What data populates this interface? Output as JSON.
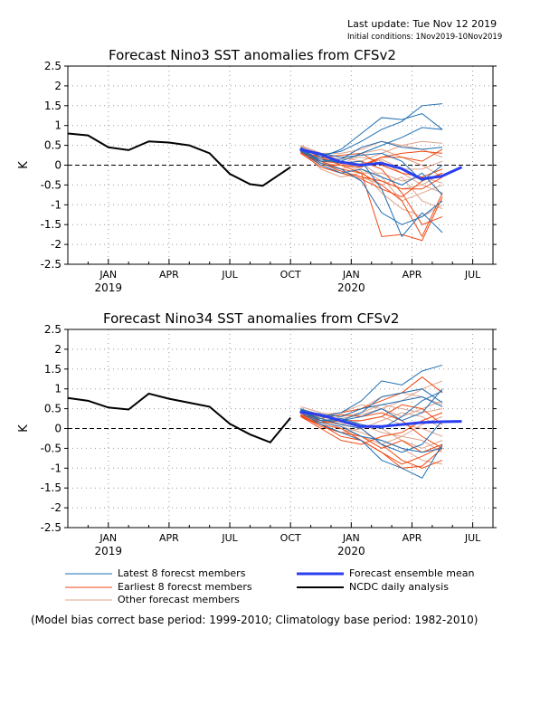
{
  "header": {
    "last_update": "Last update: Tue Nov 12 2019",
    "initial_conditions": "Initial conditions: 1Nov2019-10Nov2019"
  },
  "legend": {
    "latest": "Latest 8 forecst members",
    "earliest": "Earliest 8 forecst members",
    "other": "Other forecast members",
    "mean": "Forecast ensemble mean",
    "ncdc": "NCDC daily analysis"
  },
  "footnote": "(Model bias correct base period: 1999-2010; Climatology base period: 1982-2010)",
  "colors": {
    "latest": "#1f6fb4",
    "earliest": "#f04a14",
    "other": "#dfa58d",
    "mean": "#2b3ff0",
    "ncdc": "#000000"
  },
  "chart_data": [
    {
      "type": "line",
      "title": "Forecast Nino3 SST anomalies from CFSv2",
      "ylabel": "K",
      "ylim": [
        -2.5,
        2.5
      ],
      "yticks": [
        "2.5",
        "2",
        "1.5",
        "1",
        "0.5",
        "0",
        "-0.5",
        "-1",
        "-1.5",
        "-2",
        "-2.5"
      ],
      "xrange_months": [
        "Nov 2018",
        "Aug 2020"
      ],
      "xticks": [
        {
          "label": "JAN",
          "sub": "2019"
        },
        {
          "label": "APR",
          "sub": ""
        },
        {
          "label": "JUL",
          "sub": ""
        },
        {
          "label": "OCT",
          "sub": ""
        },
        {
          "label": "JAN",
          "sub": "2020"
        },
        {
          "label": "APR",
          "sub": ""
        },
        {
          "label": "JUL",
          "sub": ""
        }
      ],
      "grid": true,
      "ncdc": [
        [
          "2018-11-01",
          0.8
        ],
        [
          "2018-12-01",
          0.75
        ],
        [
          "2019-01-01",
          0.45
        ],
        [
          "2019-02-01",
          0.38
        ],
        [
          "2019-03-01",
          0.6
        ],
        [
          "2019-04-01",
          0.57
        ],
        [
          "2019-05-01",
          0.5
        ],
        [
          "2019-06-01",
          0.3
        ],
        [
          "2019-07-01",
          -0.22
        ],
        [
          "2019-08-01",
          -0.48
        ],
        [
          "2019-08-20",
          -0.52
        ],
        [
          "2019-10-01",
          -0.05
        ]
      ],
      "mean": [
        [
          "2019-10-15",
          0.4
        ],
        [
          "2019-11-15",
          0.28
        ],
        [
          "2019-12-15",
          0.08
        ],
        [
          "2020-01-15",
          0.0
        ],
        [
          "2020-02-15",
          0.05
        ],
        [
          "2020-03-15",
          -0.08
        ],
        [
          "2020-04-15",
          -0.35
        ],
        [
          "2020-05-15",
          -0.28
        ],
        [
          "2020-06-15",
          -0.05
        ]
      ],
      "members": [
        {
          "group": "latest",
          "values": [
            0.45,
            0.2,
            0.4,
            0.8,
            1.2,
            1.15,
            1.3,
            0.9
          ]
        },
        {
          "group": "latest",
          "values": [
            0.42,
            0.25,
            0.35,
            0.6,
            0.9,
            1.1,
            1.5,
            1.55
          ]
        },
        {
          "group": "latest",
          "values": [
            0.38,
            0.1,
            0.15,
            0.45,
            0.6,
            0.45,
            0.4,
            0.45
          ]
        },
        {
          "group": "latest",
          "values": [
            0.4,
            0.05,
            -0.1,
            -0.4,
            -1.2,
            -1.5,
            -1.3,
            -0.9
          ]
        },
        {
          "group": "latest",
          "values": [
            0.35,
            0.15,
            0.05,
            0.1,
            -0.6,
            -1.8,
            -1.2,
            -1.7
          ]
        },
        {
          "group": "latest",
          "values": [
            0.4,
            0.3,
            0.2,
            0.25,
            0.3,
            0.1,
            -0.4,
            0.0
          ]
        },
        {
          "group": "latest",
          "values": [
            0.43,
            0.1,
            0.1,
            0.3,
            0.5,
            0.7,
            0.95,
            0.9
          ]
        },
        {
          "group": "latest",
          "values": [
            0.36,
            0.0,
            -0.2,
            -0.1,
            -0.3,
            -0.5,
            -0.2,
            -0.75
          ]
        },
        {
          "group": "earliest",
          "values": [
            0.3,
            0.1,
            -0.1,
            -0.2,
            -1.8,
            -1.75,
            -1.9,
            -0.8
          ]
        },
        {
          "group": "earliest",
          "values": [
            0.35,
            0.2,
            0.0,
            -0.2,
            -0.5,
            -0.9,
            -1.8,
            -0.7
          ]
        },
        {
          "group": "earliest",
          "values": [
            0.38,
            0.15,
            0.1,
            0.0,
            0.2,
            0.2,
            0.1,
            0.4
          ]
        },
        {
          "group": "earliest",
          "values": [
            0.32,
            0.05,
            -0.15,
            -0.3,
            -0.4,
            -0.6,
            -0.6,
            -0.3
          ]
        },
        {
          "group": "earliest",
          "values": [
            0.35,
            0.1,
            0.05,
            0.1,
            -0.1,
            -0.7,
            -1.5,
            -1.3
          ]
        },
        {
          "group": "earliest",
          "values": [
            0.33,
            0.0,
            0.0,
            -0.05,
            0.2,
            0.3,
            0.35,
            0.3
          ]
        },
        {
          "group": "earliest",
          "values": [
            0.3,
            -0.05,
            -0.2,
            -0.35,
            -0.6,
            -0.8,
            -0.4,
            -0.2
          ]
        },
        {
          "group": "earliest",
          "values": [
            0.34,
            0.2,
            0.25,
            0.3,
            0.0,
            -0.2,
            -0.3,
            -0.1
          ]
        },
        {
          "group": "other",
          "values": [
            0.5,
            0.3,
            0.3,
            0.4,
            0.6,
            0.5,
            0.4,
            0.2
          ]
        },
        {
          "group": "other",
          "values": [
            0.45,
            0.2,
            0.1,
            -0.1,
            -0.4,
            -0.6,
            -0.5,
            -0.7
          ]
        },
        {
          "group": "other",
          "values": [
            0.48,
            0.25,
            0.15,
            0.2,
            0.1,
            -0.2,
            -0.5,
            -0.2
          ]
        },
        {
          "group": "other",
          "values": [
            0.4,
            0.1,
            -0.2,
            -0.3,
            -0.5,
            -0.3,
            -0.9,
            -1.1
          ]
        },
        {
          "group": "other",
          "values": [
            0.42,
            0.05,
            0.0,
            0.3,
            0.4,
            0.2,
            0.0,
            -0.3
          ]
        },
        {
          "group": "other",
          "values": [
            0.38,
            -0.1,
            -0.3,
            -0.2,
            -0.2,
            -0.4,
            -0.3,
            -0.45
          ]
        },
        {
          "group": "other",
          "values": [
            0.44,
            0.3,
            0.2,
            0.1,
            0.3,
            0.5,
            0.6,
            0.55
          ]
        },
        {
          "group": "other",
          "values": [
            0.4,
            0.15,
            0.05,
            -0.15,
            -0.7,
            -1.1,
            -1.3,
            -1.0
          ]
        },
        {
          "group": "other",
          "values": [
            0.46,
            0.2,
            0.0,
            0.0,
            0.15,
            -0.1,
            -0.1,
            0.1
          ]
        },
        {
          "group": "other",
          "values": [
            0.36,
            0.05,
            -0.1,
            0.05,
            -0.3,
            -0.9,
            -0.7,
            -0.5
          ]
        }
      ]
    },
    {
      "type": "line",
      "title": "Forecast Nino34 SST anomalies from CFSv2",
      "ylabel": "K",
      "ylim": [
        -2.5,
        2.5
      ],
      "yticks": [
        "2.5",
        "2",
        "1.5",
        "1",
        "0.5",
        "0",
        "-0.5",
        "-1",
        "-1.5",
        "-2",
        "-2.5"
      ],
      "xrange_months": [
        "Nov 2018",
        "Aug 2020"
      ],
      "xticks": [
        {
          "label": "JAN",
          "sub": "2019"
        },
        {
          "label": "APR",
          "sub": ""
        },
        {
          "label": "JUL",
          "sub": ""
        },
        {
          "label": "OCT",
          "sub": ""
        },
        {
          "label": "JAN",
          "sub": "2020"
        },
        {
          "label": "APR",
          "sub": ""
        },
        {
          "label": "JUL",
          "sub": ""
        }
      ],
      "grid": true,
      "ncdc": [
        [
          "2018-11-01",
          0.77
        ],
        [
          "2018-12-01",
          0.7
        ],
        [
          "2019-01-01",
          0.53
        ],
        [
          "2019-02-01",
          0.48
        ],
        [
          "2019-03-01",
          0.88
        ],
        [
          "2019-04-01",
          0.75
        ],
        [
          "2019-05-01",
          0.65
        ],
        [
          "2019-06-01",
          0.55
        ],
        [
          "2019-07-01",
          0.12
        ],
        [
          "2019-08-01",
          -0.15
        ],
        [
          "2019-09-01",
          -0.35
        ],
        [
          "2019-10-01",
          0.27
        ]
      ],
      "mean": [
        [
          "2019-10-15",
          0.42
        ],
        [
          "2019-11-15",
          0.35
        ],
        [
          "2019-12-15",
          0.2
        ],
        [
          "2020-01-15",
          0.05
        ],
        [
          "2020-02-15",
          0.05
        ],
        [
          "2020-03-15",
          0.1
        ],
        [
          "2020-04-15",
          0.15
        ],
        [
          "2020-05-15",
          0.17
        ],
        [
          "2020-06-15",
          0.18
        ]
      ],
      "members": [
        {
          "group": "latest",
          "values": [
            0.5,
            0.3,
            0.4,
            0.7,
            1.2,
            1.1,
            1.45,
            1.6
          ]
        },
        {
          "group": "latest",
          "values": [
            0.45,
            0.2,
            0.2,
            0.4,
            0.8,
            0.9,
            1.0,
            0.65
          ]
        },
        {
          "group": "latest",
          "values": [
            0.48,
            0.35,
            0.3,
            0.5,
            0.6,
            0.7,
            0.8,
            0.55
          ]
        },
        {
          "group": "latest",
          "values": [
            0.4,
            0.1,
            -0.1,
            -0.3,
            -0.8,
            -1.0,
            -1.25,
            -0.4
          ]
        },
        {
          "group": "latest",
          "values": [
            0.42,
            0.25,
            0.1,
            0.0,
            -0.4,
            -0.6,
            -0.4,
            0.2
          ]
        },
        {
          "group": "latest",
          "values": [
            0.46,
            0.3,
            0.2,
            0.3,
            0.5,
            0.2,
            0.4,
            1.0
          ]
        },
        {
          "group": "latest",
          "values": [
            0.44,
            0.15,
            0.05,
            -0.2,
            -0.3,
            -0.5,
            -0.6,
            -0.5
          ]
        },
        {
          "group": "latest",
          "values": [
            0.5,
            0.2,
            0.25,
            0.1,
            0.0,
            0.3,
            0.7,
            0.95
          ]
        },
        {
          "group": "earliest",
          "values": [
            0.3,
            0.1,
            -0.2,
            -0.3,
            -0.6,
            -1.0,
            -0.95,
            -0.5
          ]
        },
        {
          "group": "earliest",
          "values": [
            0.35,
            0.2,
            0.1,
            0.0,
            -0.4,
            -0.8,
            -1.0,
            -0.8
          ]
        },
        {
          "group": "earliest",
          "values": [
            0.38,
            0.3,
            0.4,
            0.5,
            0.7,
            0.9,
            1.3,
            0.9
          ]
        },
        {
          "group": "earliest",
          "values": [
            0.32,
            0.05,
            -0.1,
            -0.2,
            -0.5,
            -0.3,
            -0.6,
            -0.4
          ]
        },
        {
          "group": "earliest",
          "values": [
            0.35,
            0.15,
            0.2,
            0.2,
            0.3,
            0.6,
            0.5,
            0.1
          ]
        },
        {
          "group": "earliest",
          "values": [
            0.33,
            0.1,
            0.0,
            -0.3,
            -0.6,
            -0.9,
            -0.7,
            -0.45
          ]
        },
        {
          "group": "earliest",
          "values": [
            0.3,
            0.0,
            -0.3,
            -0.4,
            -0.2,
            -0.1,
            0.2,
            0.4
          ]
        },
        {
          "group": "earliest",
          "values": [
            0.34,
            0.25,
            0.35,
            0.3,
            0.4,
            0.2,
            -0.2,
            -0.5
          ]
        },
        {
          "group": "other",
          "values": [
            0.55,
            0.4,
            0.3,
            0.5,
            0.8,
            0.9,
            0.8,
            0.6
          ]
        },
        {
          "group": "other",
          "values": [
            0.5,
            0.3,
            0.2,
            0.1,
            -0.1,
            -0.2,
            -0.3,
            -0.6
          ]
        },
        {
          "group": "other",
          "values": [
            0.48,
            0.3,
            0.25,
            0.35,
            0.5,
            0.7,
            1.0,
            1.2
          ]
        },
        {
          "group": "other",
          "values": [
            0.45,
            0.15,
            0.05,
            -0.1,
            -0.3,
            -0.5,
            -0.8,
            -0.9
          ]
        },
        {
          "group": "other",
          "values": [
            0.44,
            0.2,
            0.1,
            0.2,
            0.3,
            0.1,
            0.0,
            -0.2
          ]
        },
        {
          "group": "other",
          "values": [
            0.42,
            0.1,
            -0.1,
            0.0,
            0.2,
            0.4,
            0.3,
            0.0
          ]
        },
        {
          "group": "other",
          "values": [
            0.5,
            0.35,
            0.4,
            0.6,
            0.5,
            0.3,
            0.5,
            0.7
          ]
        },
        {
          "group": "other",
          "values": [
            0.4,
            0.2,
            0.0,
            -0.2,
            -0.4,
            -0.2,
            0.1,
            0.3
          ]
        },
        {
          "group": "other",
          "values": [
            0.47,
            0.25,
            0.15,
            0.1,
            0.0,
            -0.3,
            -0.5,
            -0.3
          ]
        },
        {
          "group": "other",
          "values": [
            0.43,
            0.15,
            0.3,
            0.4,
            0.6,
            0.5,
            0.4,
            0.5
          ]
        }
      ]
    }
  ]
}
